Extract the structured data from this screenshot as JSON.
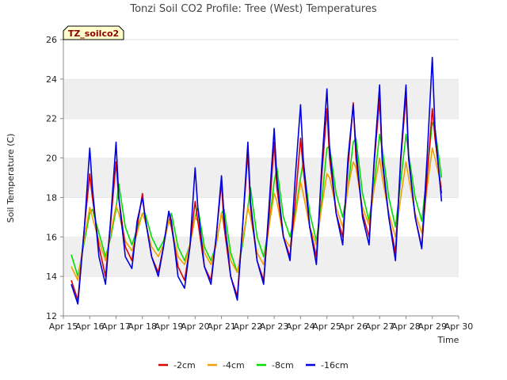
{
  "chart_data": {
    "type": "line",
    "title": "Tonzi Soil CO2 Profile: Tree (West) Temperatures",
    "xlabel": "Time",
    "ylabel": "Soil Temperature (C)",
    "badge": "TZ_soilco2",
    "xlim": [
      15,
      30
    ],
    "ylim": [
      12,
      26
    ],
    "x_ticks": [
      {
        "value": 15,
        "label": "Apr 15"
      },
      {
        "value": 16,
        "label": "Apr 16"
      },
      {
        "value": 17,
        "label": "Apr 17"
      },
      {
        "value": 18,
        "label": "Apr 18"
      },
      {
        "value": 19,
        "label": "Apr 19"
      },
      {
        "value": 20,
        "label": "Apr 20"
      },
      {
        "value": 21,
        "label": "Apr 21"
      },
      {
        "value": 22,
        "label": "Apr 22"
      },
      {
        "value": 23,
        "label": "Apr 23"
      },
      {
        "value": 24,
        "label": "Apr 24"
      },
      {
        "value": 25,
        "label": "Apr 25"
      },
      {
        "value": 26,
        "label": "Apr 26"
      },
      {
        "value": 27,
        "label": "Apr 27"
      },
      {
        "value": 28,
        "label": "Apr 28"
      },
      {
        "value": 29,
        "label": "Apr 29"
      },
      {
        "value": 30,
        "label": "Apr 30"
      }
    ],
    "y_ticks": [
      {
        "value": 12,
        "label": "12"
      },
      {
        "value": 14,
        "label": "14"
      },
      {
        "value": 16,
        "label": "16"
      },
      {
        "value": 18,
        "label": "18"
      },
      {
        "value": 20,
        "label": "20"
      },
      {
        "value": 22,
        "label": "22"
      },
      {
        "value": 24,
        "label": "24"
      },
      {
        "value": 26,
        "label": "26"
      }
    ],
    "grid": "horizontal bands",
    "legend_position": "bottom",
    "series": [
      {
        "name": "-2cm",
        "color": "#dd0000",
        "x": [
          15.3,
          15.55,
          15.8,
          16.0,
          16.1,
          16.35,
          16.6,
          16.8,
          17.0,
          17.1,
          17.35,
          17.6,
          17.8,
          18.0,
          18.1,
          18.35,
          18.6,
          18.8,
          19.0,
          19.1,
          19.35,
          19.6,
          19.8,
          20.0,
          20.1,
          20.35,
          20.6,
          20.8,
          21.0,
          21.1,
          21.35,
          21.6,
          21.8,
          22.0,
          22.1,
          22.35,
          22.6,
          22.8,
          23.0,
          23.1,
          23.35,
          23.6,
          23.8,
          24.0,
          24.1,
          24.35,
          24.6,
          24.8,
          25.0,
          25.1,
          25.35,
          25.6,
          25.8,
          26.0,
          26.1,
          26.35,
          26.6,
          26.8,
          27.0,
          27.1,
          27.35,
          27.6,
          27.8,
          28.0,
          28.1,
          28.35,
          28.6,
          28.8,
          29.0,
          29.1,
          29.35
        ],
        "y": [
          13.8,
          12.8,
          16.5,
          19.2,
          18.0,
          15.5,
          14.0,
          16.8,
          19.8,
          18.0,
          15.5,
          14.8,
          16.5,
          18.2,
          17.0,
          15.0,
          14.2,
          15.5,
          17.3,
          16.5,
          14.5,
          13.8,
          15.5,
          17.8,
          16.8,
          14.5,
          13.8,
          16.0,
          18.8,
          16.5,
          14.0,
          13.0,
          16.5,
          20.3,
          17.5,
          14.8,
          13.8,
          17.0,
          20.8,
          18.5,
          16.0,
          15.0,
          17.8,
          21.0,
          19.5,
          16.5,
          15.0,
          19.0,
          22.5,
          20.0,
          17.2,
          16.0,
          19.5,
          22.8,
          20.0,
          17.2,
          16.0,
          19.8,
          23.0,
          19.8,
          17.0,
          15.2,
          19.8,
          23.2,
          20.0,
          17.0,
          15.5,
          19.0,
          22.5,
          21.0,
          18.2
        ]
      },
      {
        "name": "-4cm",
        "color": "#f0a000",
        "x": [
          15.3,
          15.55,
          15.8,
          16.0,
          16.1,
          16.35,
          16.6,
          16.8,
          17.0,
          17.1,
          17.35,
          17.6,
          17.8,
          18.0,
          18.1,
          18.35,
          18.6,
          18.8,
          19.0,
          19.1,
          19.35,
          19.6,
          19.8,
          20.0,
          20.1,
          20.35,
          20.6,
          20.8,
          21.0,
          21.1,
          21.35,
          21.6,
          21.8,
          22.0,
          22.1,
          22.35,
          22.6,
          22.8,
          23.0,
          23.1,
          23.35,
          23.6,
          23.8,
          24.0,
          24.1,
          24.35,
          24.6,
          24.8,
          25.0,
          25.1,
          25.35,
          25.6,
          25.8,
          26.0,
          26.1,
          26.35,
          26.6,
          26.8,
          27.0,
          27.1,
          27.35,
          27.6,
          27.8,
          28.0,
          28.1,
          28.35,
          28.6,
          28.8,
          29.0,
          29.1,
          29.35
        ],
        "y": [
          14.5,
          13.8,
          16.0,
          17.5,
          17.0,
          15.8,
          14.8,
          16.2,
          17.6,
          17.2,
          15.8,
          15.3,
          16.2,
          17.2,
          16.8,
          15.5,
          15.0,
          15.6,
          16.8,
          16.5,
          15.0,
          14.6,
          15.6,
          17.0,
          16.8,
          15.2,
          14.6,
          15.6,
          17.2,
          16.5,
          14.8,
          14.2,
          15.8,
          17.5,
          17.0,
          15.2,
          14.6,
          16.5,
          18.2,
          17.8,
          16.0,
          15.5,
          17.0,
          18.8,
          18.2,
          16.5,
          15.6,
          17.5,
          19.2,
          19.0,
          17.5,
          16.5,
          18.5,
          19.8,
          19.5,
          17.5,
          16.6,
          18.5,
          20.0,
          19.0,
          17.2,
          16.0,
          18.0,
          19.8,
          19.0,
          17.2,
          16.2,
          18.5,
          20.5,
          20.0,
          18.5
        ]
      },
      {
        "name": "-8cm",
        "color": "#00dd00",
        "x": [
          15.3,
          15.55,
          15.8,
          16.0,
          16.1,
          16.35,
          16.6,
          16.8,
          17.0,
          17.1,
          17.35,
          17.6,
          17.8,
          18.0,
          18.1,
          18.35,
          18.6,
          18.8,
          19.0,
          19.1,
          19.35,
          19.6,
          19.8,
          20.0,
          20.1,
          20.35,
          20.6,
          20.8,
          21.0,
          21.1,
          21.35,
          21.6,
          21.8,
          22.0,
          22.1,
          22.35,
          22.6,
          22.8,
          23.0,
          23.1,
          23.35,
          23.6,
          23.8,
          24.0,
          24.1,
          24.35,
          24.6,
          24.8,
          25.0,
          25.1,
          25.35,
          25.6,
          25.8,
          26.0,
          26.1,
          26.35,
          26.6,
          26.8,
          27.0,
          27.1,
          27.35,
          27.6,
          27.8,
          28.0,
          28.1,
          28.35,
          28.6,
          28.8,
          29.0,
          29.1,
          29.35
        ],
        "y": [
          15.1,
          14.0,
          15.8,
          17.2,
          17.4,
          16.2,
          15.0,
          16.0,
          17.4,
          18.7,
          16.5,
          15.6,
          16.4,
          17.2,
          17.2,
          16.0,
          15.3,
          15.8,
          16.8,
          17.2,
          15.5,
          14.8,
          15.6,
          17.0,
          17.5,
          15.5,
          14.8,
          15.6,
          17.2,
          17.4,
          15.2,
          14.2,
          15.6,
          17.5,
          18.5,
          16.0,
          15.0,
          16.5,
          18.8,
          19.5,
          17.0,
          16.0,
          17.2,
          19.0,
          19.8,
          17.2,
          15.8,
          17.8,
          20.5,
          20.6,
          18.2,
          17.0,
          18.5,
          20.8,
          21.0,
          18.2,
          16.8,
          18.8,
          21.2,
          20.5,
          18.0,
          16.5,
          18.8,
          21.2,
          20.2,
          18.0,
          16.8,
          19.2,
          21.8,
          21.5,
          19.0
        ]
      },
      {
        "name": "-16cm",
        "color": "#0000dd",
        "x": [
          15.3,
          15.55,
          15.8,
          16.0,
          16.1,
          16.35,
          16.6,
          16.8,
          17.0,
          17.1,
          17.35,
          17.6,
          17.8,
          18.0,
          18.1,
          18.35,
          18.6,
          18.8,
          19.0,
          19.1,
          19.35,
          19.6,
          19.8,
          20.0,
          20.1,
          20.35,
          20.6,
          20.8,
          21.0,
          21.1,
          21.35,
          21.6,
          21.8,
          22.0,
          22.1,
          22.35,
          22.6,
          22.8,
          23.0,
          23.1,
          23.35,
          23.6,
          23.8,
          24.0,
          24.1,
          24.35,
          24.6,
          24.8,
          25.0,
          25.1,
          25.35,
          25.6,
          25.8,
          26.0,
          26.1,
          26.35,
          26.6,
          26.8,
          27.0,
          27.1,
          27.35,
          27.6,
          27.8,
          28.0,
          28.1,
          28.35,
          28.6,
          28.8,
          29.0,
          29.1,
          29.35
        ],
        "y": [
          13.6,
          12.6,
          16.5,
          20.5,
          18.5,
          15.0,
          13.6,
          17.0,
          20.8,
          18.0,
          15.0,
          14.4,
          16.8,
          18.0,
          17.0,
          15.0,
          14.0,
          15.5,
          17.3,
          16.8,
          14.0,
          13.4,
          15.5,
          19.5,
          17.5,
          14.5,
          13.6,
          16.0,
          19.1,
          17.0,
          14.0,
          12.8,
          16.5,
          20.8,
          17.8,
          14.8,
          13.6,
          17.5,
          21.5,
          19.0,
          16.0,
          14.8,
          19.0,
          22.7,
          20.0,
          16.5,
          14.6,
          19.5,
          23.5,
          20.5,
          17.2,
          15.6,
          20.0,
          22.7,
          20.5,
          17.0,
          15.6,
          20.0,
          23.7,
          20.0,
          17.0,
          14.8,
          20.0,
          23.7,
          20.0,
          17.0,
          15.4,
          20.0,
          25.1,
          21.5,
          17.8
        ]
      }
    ]
  }
}
